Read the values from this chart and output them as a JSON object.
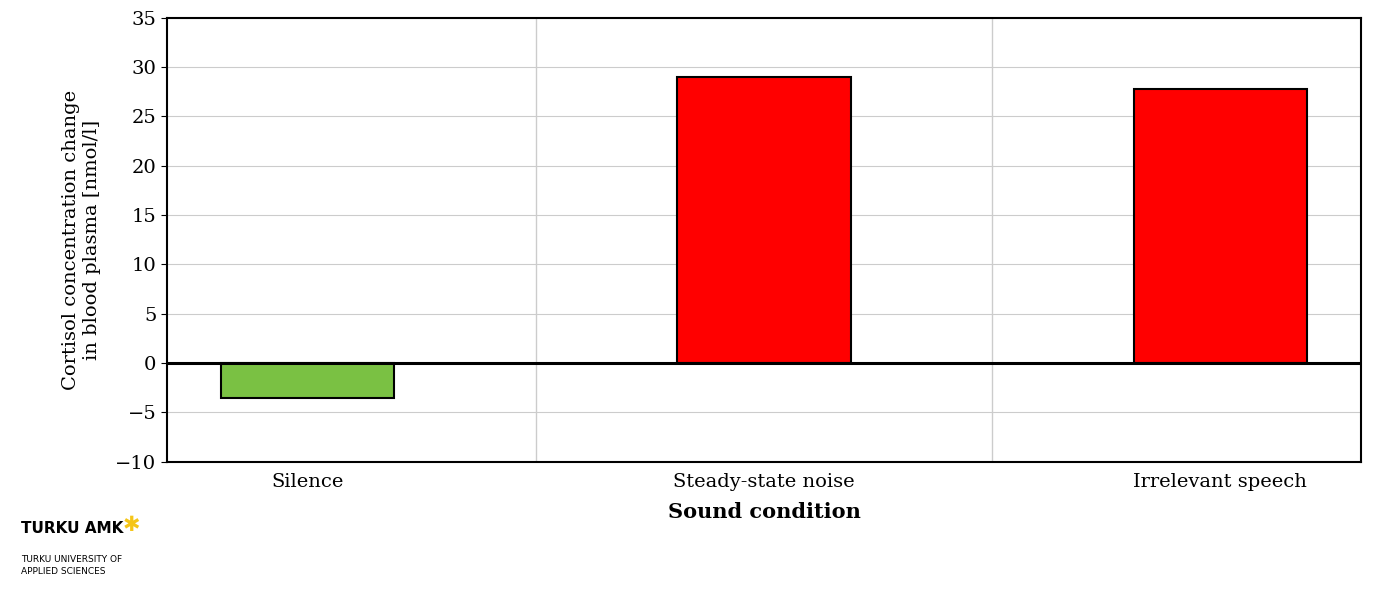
{
  "categories": [
    "Silence",
    "Steady-state noise",
    "Irrelevant speech"
  ],
  "values": [
    -3.5,
    29.0,
    27.8
  ],
  "bar_colors": [
    "#7ac143",
    "#ff0000",
    "#ff0000"
  ],
  "bar_edge_color": "#000000",
  "bar_width": 0.38,
  "ylabel": "Cortisol concentration change\nin blood plasma [nmol/l]",
  "xlabel": "Sound condition",
  "ylim": [
    -10,
    35
  ],
  "yticks": [
    -10,
    -5,
    0,
    5,
    10,
    15,
    20,
    25,
    30,
    35
  ],
  "grid_color": "#cccccc",
  "background_color": "#ffffff",
  "ylabel_fontsize": 14,
  "xlabel_fontsize": 15,
  "tick_fontsize": 14,
  "logo_text_big": "TURKU AMK",
  "logo_text_small": "TURKU UNIVERSITY OF\nAPPLIED SCIENCES",
  "logo_star_color": "#f5c518",
  "zero_line_color": "#000000",
  "spine_color": "#000000",
  "vline_positions": [
    0.5,
    1.5
  ],
  "vline_color": "#cccccc"
}
